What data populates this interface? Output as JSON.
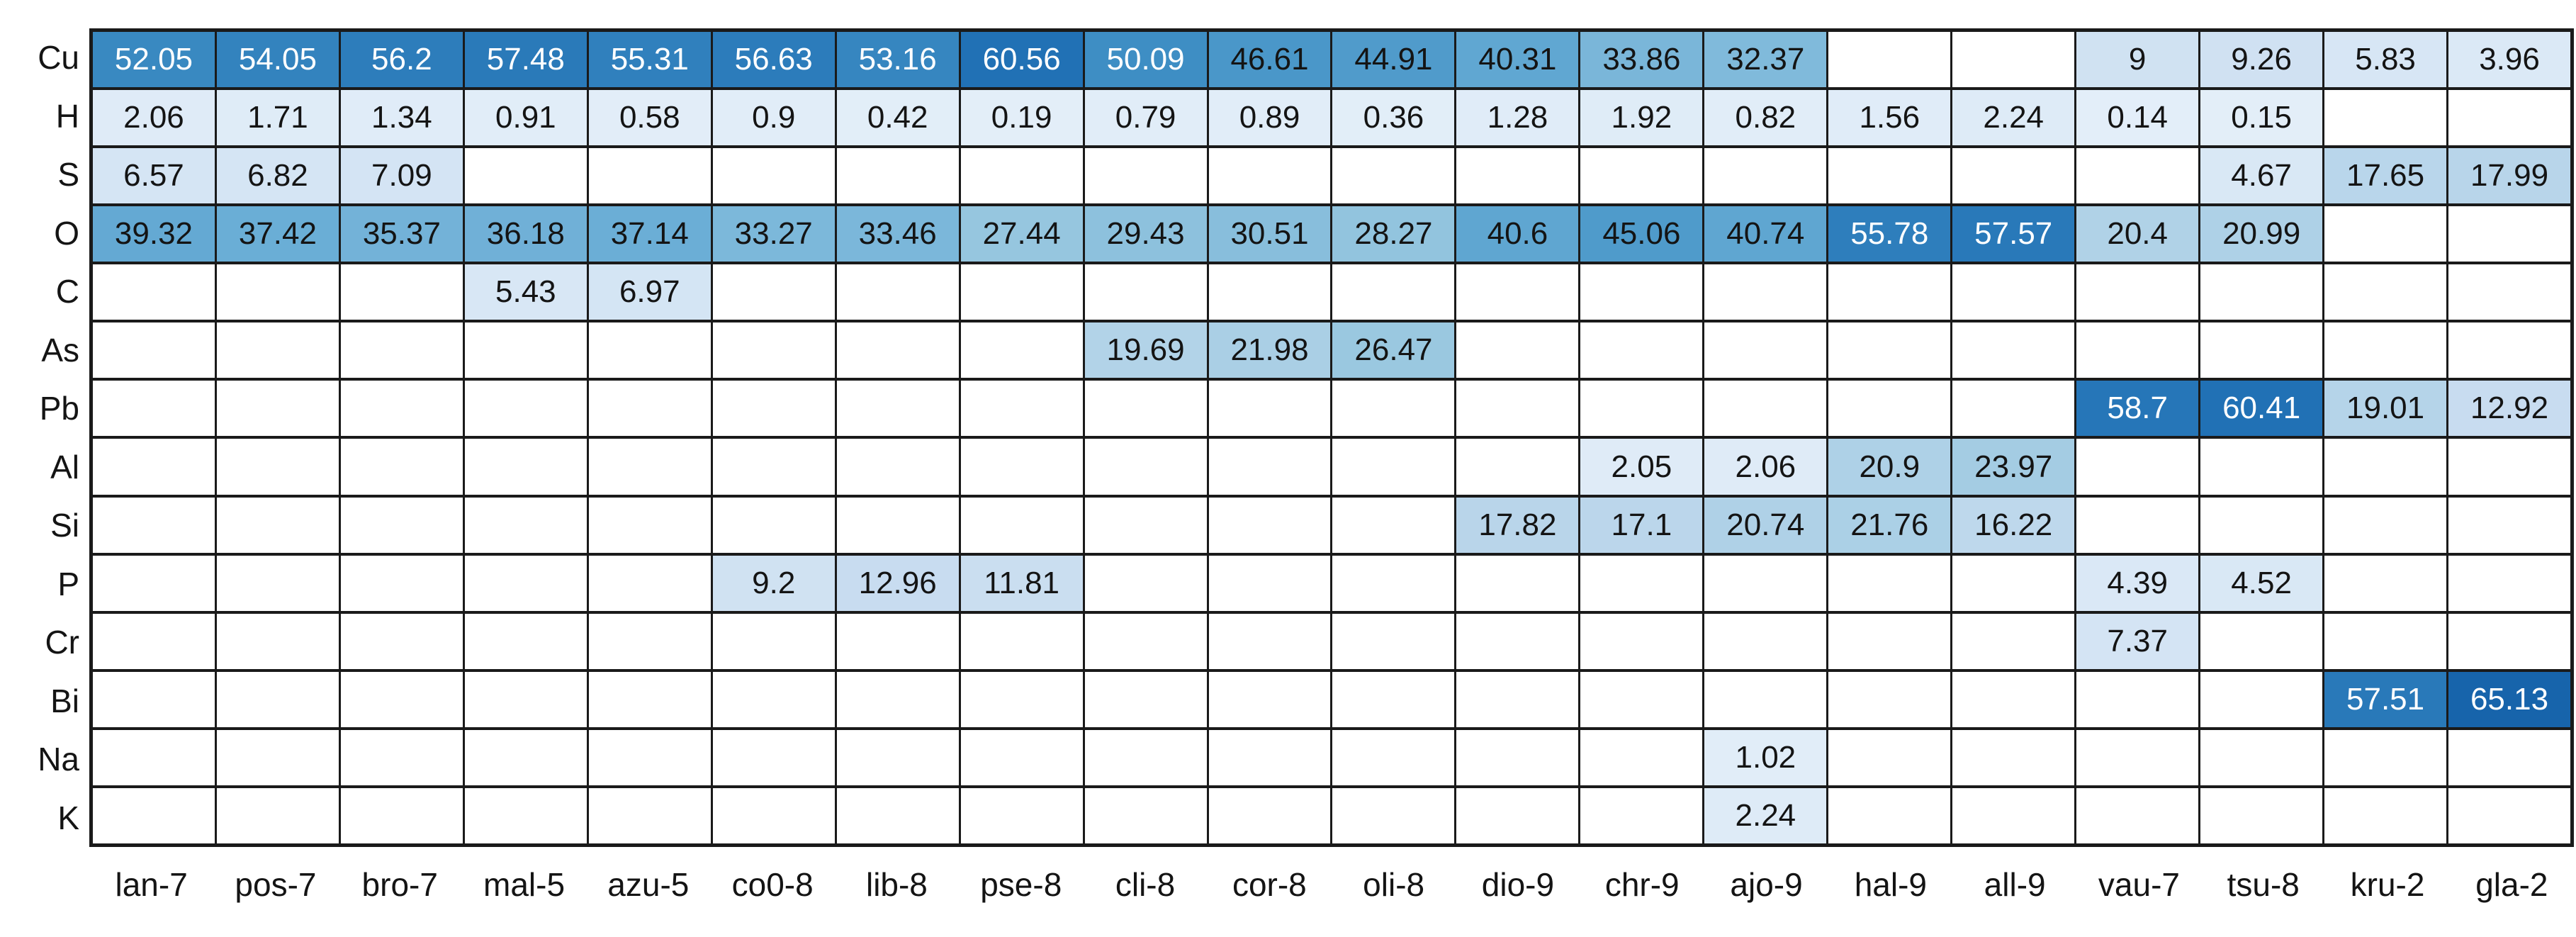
{
  "chart_data": {
    "type": "heatmap",
    "title": "",
    "xlabel": "",
    "ylabel": "",
    "legend": "none",
    "grid": "on",
    "rows": [
      "Cu",
      "H",
      "S",
      "O",
      "C",
      "As",
      "Pb",
      "Al",
      "Si",
      "P",
      "Cr",
      "Bi",
      "Na",
      "K"
    ],
    "columns": [
      "lan-7",
      "pos-7",
      "bro-7",
      "mal-5",
      "azu-5",
      "co0-8",
      "lib-8",
      "pse-8",
      "cli-8",
      "cor-8",
      "oli-8",
      "dio-9",
      "chr-9",
      "ajo-9",
      "hal-9",
      "all-9",
      "vau-7",
      "tsu-8",
      "kru-2",
      "gla-2"
    ],
    "values": [
      [
        52.05,
        54.05,
        56.2,
        57.48,
        55.31,
        56.63,
        53.16,
        60.56,
        50.09,
        46.61,
        44.91,
        40.31,
        33.86,
        32.37,
        null,
        null,
        9,
        9.26,
        5.83,
        3.96
      ],
      [
        2.06,
        1.71,
        1.34,
        0.91,
        0.58,
        0.9,
        0.42,
        0.19,
        0.79,
        0.89,
        0.36,
        1.28,
        1.92,
        0.82,
        1.56,
        2.24,
        0.14,
        0.15,
        null,
        null
      ],
      [
        6.57,
        6.82,
        7.09,
        null,
        null,
        null,
        null,
        null,
        null,
        null,
        null,
        null,
        null,
        null,
        null,
        null,
        null,
        4.67,
        17.65,
        17.99
      ],
      [
        39.32,
        37.42,
        35.37,
        36.18,
        37.14,
        33.27,
        33.46,
        27.44,
        29.43,
        30.51,
        28.27,
        40.6,
        45.06,
        40.74,
        55.78,
        57.57,
        20.4,
        20.99,
        null,
        null
      ],
      [
        null,
        null,
        null,
        5.43,
        6.97,
        null,
        null,
        null,
        null,
        null,
        null,
        null,
        null,
        null,
        null,
        null,
        null,
        null,
        null,
        null
      ],
      [
        null,
        null,
        null,
        null,
        null,
        null,
        null,
        null,
        19.69,
        21.98,
        26.47,
        null,
        null,
        null,
        null,
        null,
        null,
        null,
        null,
        null
      ],
      [
        null,
        null,
        null,
        null,
        null,
        null,
        null,
        null,
        null,
        null,
        null,
        null,
        null,
        null,
        null,
        null,
        58.7,
        60.41,
        19.01,
        12.92
      ],
      [
        null,
        null,
        null,
        null,
        null,
        null,
        null,
        null,
        null,
        null,
        null,
        null,
        2.05,
        2.06,
        20.9,
        23.97,
        null,
        null,
        null,
        null
      ],
      [
        null,
        null,
        null,
        null,
        null,
        null,
        null,
        null,
        null,
        null,
        null,
        17.82,
        17.1,
        20.74,
        21.76,
        16.22,
        null,
        null,
        null,
        null
      ],
      [
        null,
        null,
        null,
        null,
        null,
        9.2,
        12.96,
        11.81,
        null,
        null,
        null,
        null,
        null,
        null,
        null,
        null,
        4.39,
        4.52,
        null,
        null
      ],
      [
        null,
        null,
        null,
        null,
        null,
        null,
        null,
        null,
        null,
        null,
        null,
        null,
        null,
        null,
        null,
        null,
        7.37,
        null,
        null,
        null
      ],
      [
        null,
        null,
        null,
        null,
        null,
        null,
        null,
        null,
        null,
        null,
        null,
        null,
        null,
        null,
        null,
        null,
        null,
        null,
        57.51,
        65.13
      ],
      [
        null,
        null,
        null,
        null,
        null,
        null,
        null,
        null,
        null,
        null,
        null,
        null,
        null,
        1.02,
        null,
        null,
        null,
        null,
        null,
        null
      ],
      [
        null,
        null,
        null,
        null,
        null,
        null,
        null,
        null,
        null,
        null,
        null,
        null,
        null,
        2.24,
        null,
        null,
        null,
        null,
        null,
        null
      ]
    ],
    "colormap": {
      "name": "blues-truncated",
      "stops": [
        [
          247,
          251,
          255
        ],
        [
          222,
          235,
          247
        ],
        [
          198,
          219,
          239
        ],
        [
          158,
          202,
          225
        ],
        [
          107,
          174,
          214
        ],
        [
          66,
          146,
          198
        ],
        [
          33,
          113,
          181
        ],
        [
          8,
          81,
          156
        ],
        [
          8,
          48,
          107
        ]
      ],
      "t_offset": 0.1,
      "t_scale": 0.7,
      "vmax": 65.13,
      "empty_cell_color": "#ffffff",
      "dark_cell_text_color": "#ffffff",
      "light_cell_text_color": "#141414",
      "white_text_min_value": 48
    },
    "grid_line_color": "#1a1a1a",
    "background_color": "#ffffff"
  }
}
